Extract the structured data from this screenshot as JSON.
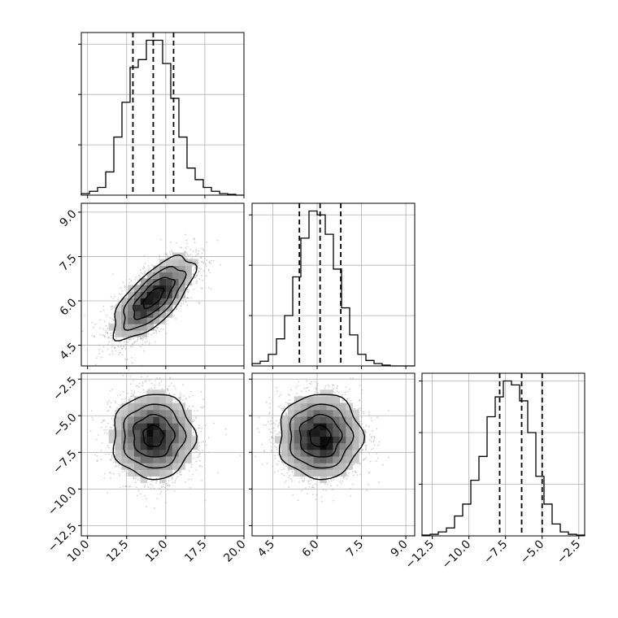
{
  "chart_data": {
    "type": "corner",
    "grid": true,
    "parameters": [
      {
        "range": [
          9.6,
          20.0
        ],
        "ticks": [
          10.0,
          12.5,
          15.0,
          17.5,
          20.0
        ],
        "tick_labels": [
          "10.0",
          "12.5",
          "15.0",
          "17.5",
          "20.0"
        ]
      },
      {
        "range": [
          3.8,
          9.3
        ],
        "ticks": [
          4.5,
          6.0,
          7.5,
          9.0
        ],
        "tick_labels": [
          "4.5",
          "6.0",
          "7.5",
          "9.0"
        ]
      },
      {
        "range": [
          -13.2,
          -2.1
        ],
        "ticks": [
          -12.5,
          -10.0,
          -7.5,
          -5.0,
          -2.5
        ],
        "tick_labels": [
          "−12.5",
          "−10.0",
          "−7.5",
          "−5.0",
          "−2.5"
        ]
      }
    ],
    "histograms": [
      {
        "bin_edges": [
          9.6,
          10.12,
          10.64,
          11.16,
          11.68,
          12.2,
          12.72,
          13.24,
          13.76,
          14.28,
          14.8,
          15.32,
          15.84,
          16.36,
          16.88,
          17.4,
          17.92,
          18.44,
          18.96,
          19.48,
          20.0
        ],
        "counts": [
          2,
          5,
          10,
          30,
          75,
          120,
          165,
          175,
          200,
          200,
          170,
          125,
          75,
          35,
          20,
          10,
          5,
          2,
          1,
          0
        ],
        "quantiles": [
          12.9,
          14.2,
          15.5
        ]
      },
      {
        "bin_edges": [
          3.8,
          4.075,
          4.35,
          4.625,
          4.9,
          5.175,
          5.45,
          5.725,
          6.0,
          6.275,
          6.55,
          6.825,
          7.1,
          7.375,
          7.65,
          7.925,
          8.2,
          8.475,
          8.75,
          9.025,
          9.3
        ],
        "counts": [
          3,
          6,
          15,
          35,
          65,
          115,
          165,
          200,
          195,
          170,
          125,
          75,
          40,
          15,
          7,
          3,
          1,
          0,
          0,
          0
        ],
        "quantiles": [
          5.4,
          6.1,
          6.8
        ]
      },
      {
        "bin_edges": [
          -13.2,
          -12.645,
          -12.09,
          -11.535,
          -10.98,
          -10.425,
          -9.87,
          -9.315,
          -8.76,
          -8.205,
          -7.65,
          -7.095,
          -6.54,
          -5.985,
          -5.43,
          -4.875,
          -4.32,
          -3.765,
          -3.21,
          -2.655,
          -2.1
        ],
        "counts": [
          1,
          2,
          5,
          10,
          25,
          40,
          70,
          100,
          150,
          175,
          195,
          190,
          170,
          130,
          75,
          40,
          15,
          5,
          2,
          1
        ],
        "quantiles": [
          -7.9,
          -6.4,
          -5.0
        ]
      }
    ],
    "pairs": [
      {
        "x_param": 0,
        "y_param": 1,
        "mean": [
          14.2,
          6.1
        ],
        "std": [
          1.3,
          0.7
        ],
        "correlation": 0.7
      },
      {
        "x_param": 0,
        "y_param": 2,
        "mean": [
          14.2,
          -6.4
        ],
        "std": [
          1.3,
          1.45
        ],
        "correlation": 0.0
      },
      {
        "x_param": 1,
        "y_param": 2,
        "mean": [
          6.1,
          -6.4
        ],
        "std": [
          0.7,
          1.45
        ],
        "correlation": 0.0
      }
    ],
    "colors": {
      "line": "#000000",
      "points": "#999999",
      "grid": "#b0b0b0"
    }
  }
}
